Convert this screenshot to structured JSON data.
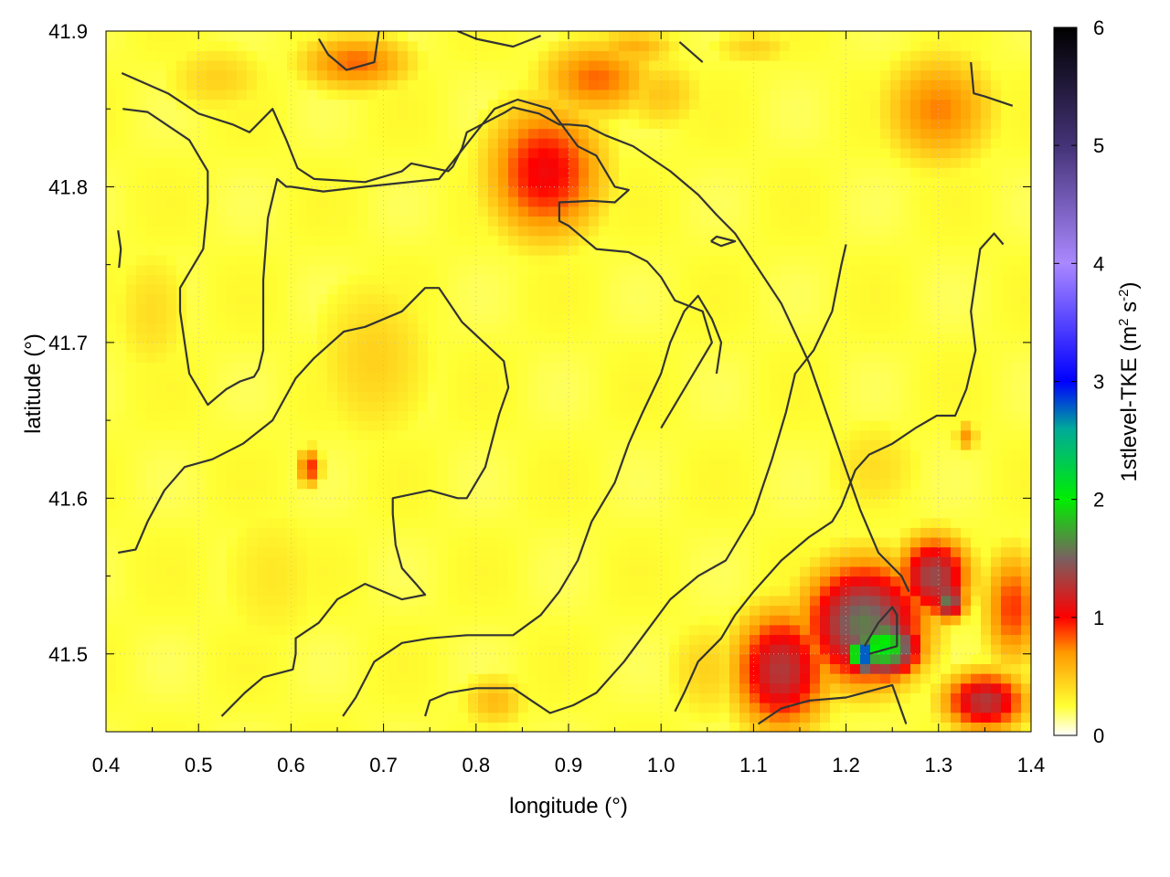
{
  "chart_data": {
    "type": "heatmap",
    "title": "",
    "xlabel": "longitude (°)",
    "ylabel": "latitude (°)",
    "xlim": [
      0.4,
      1.4
    ],
    "ylim": [
      41.45,
      41.9
    ],
    "xticks": [
      0.4,
      0.5,
      0.6,
      0.7,
      0.8,
      0.9,
      1.0,
      1.1,
      1.2,
      1.3,
      1.4
    ],
    "xtick_labels": [
      "0.4",
      "0.5",
      "0.6",
      "0.7",
      "0.8",
      "0.9",
      "1.0",
      "1.1",
      "1.2",
      "1.3",
      "1.4"
    ],
    "yticks": [
      41.5,
      41.6,
      41.7,
      41.8,
      41.9
    ],
    "ytick_labels": [
      "41.5",
      "41.6",
      "41.7",
      "41.8",
      "41.9"
    ],
    "grid": true,
    "colorbar": {
      "label_main": "1stlevel-TKE (m",
      "label_sup1": "2",
      "label_mid": " s",
      "label_sup2": "-2",
      "label_end": ")",
      "range": [
        0,
        6
      ],
      "ticks": [
        0,
        1,
        2,
        3,
        4,
        5,
        6
      ],
      "tick_labels": [
        "0",
        "1",
        "2",
        "3",
        "4",
        "5",
        "6"
      ],
      "colors": [
        {
          "v": 0.0,
          "c": "#ffffff"
        },
        {
          "v": 0.25,
          "c": "#ffff33"
        },
        {
          "v": 0.7,
          "c": "#ff9900"
        },
        {
          "v": 1.0,
          "c": "#ff0000"
        },
        {
          "v": 1.5,
          "c": "#7a6060"
        },
        {
          "v": 2.0,
          "c": "#00ee00"
        },
        {
          "v": 2.6,
          "c": "#00aa99"
        },
        {
          "v": 3.0,
          "c": "#0000ff"
        },
        {
          "v": 4.0,
          "c": "#aa88ff"
        },
        {
          "v": 5.0,
          "c": "#443377"
        },
        {
          "v": 6.0,
          "c": "#000000"
        }
      ]
    },
    "hotspots": [
      {
        "lon": 0.875,
        "lat": 41.81,
        "tke": 1.05,
        "sx": 0.05,
        "sy": 0.035
      },
      {
        "lon": 0.93,
        "lat": 41.87,
        "tke": 0.8,
        "sx": 0.05,
        "sy": 0.02
      },
      {
        "lon": 0.67,
        "lat": 41.88,
        "tke": 0.8,
        "sx": 0.05,
        "sy": 0.015
      },
      {
        "lon": 0.97,
        "lat": 41.89,
        "tke": 0.6,
        "sx": 0.04,
        "sy": 0.01
      },
      {
        "lon": 1.3,
        "lat": 41.85,
        "tke": 0.75,
        "sx": 0.05,
        "sy": 0.03
      },
      {
        "lon": 0.52,
        "lat": 41.87,
        "tke": 0.45,
        "sx": 0.05,
        "sy": 0.02
      },
      {
        "lon": 0.62,
        "lat": 41.62,
        "tke": 0.95,
        "sx": 0.01,
        "sy": 0.01
      },
      {
        "lon": 0.69,
        "lat": 41.69,
        "tke": 0.45,
        "sx": 0.06,
        "sy": 0.05
      },
      {
        "lon": 0.82,
        "lat": 41.47,
        "tke": 0.55,
        "sx": 0.03,
        "sy": 0.015
      },
      {
        "lon": 1.13,
        "lat": 41.49,
        "tke": 1.3,
        "sx": 0.04,
        "sy": 0.03
      },
      {
        "lon": 1.13,
        "lat": 41.49,
        "tke": 0.8,
        "sx": 0.025,
        "sy": 0.02
      },
      {
        "lon": 1.22,
        "lat": 41.52,
        "tke": 1.6,
        "sx": 0.05,
        "sy": 0.03
      },
      {
        "lon": 1.24,
        "lat": 41.505,
        "tke": 2.1,
        "sx": 0.03,
        "sy": 0.015
      },
      {
        "lon": 1.22,
        "lat": 41.5,
        "tke": 3.0,
        "sx": 0.012,
        "sy": 0.008
      },
      {
        "lon": 1.295,
        "lat": 41.55,
        "tke": 1.4,
        "sx": 0.03,
        "sy": 0.02
      },
      {
        "lon": 1.31,
        "lat": 41.535,
        "tke": 1.6,
        "sx": 0.015,
        "sy": 0.01
      },
      {
        "lon": 1.35,
        "lat": 41.47,
        "tke": 1.3,
        "sx": 0.035,
        "sy": 0.015
      },
      {
        "lon": 1.38,
        "lat": 41.53,
        "tke": 0.9,
        "sx": 0.025,
        "sy": 0.03
      },
      {
        "lon": 1.05,
        "lat": 41.49,
        "tke": 0.45,
        "sx": 0.04,
        "sy": 0.03
      },
      {
        "lon": 1.23,
        "lat": 41.62,
        "tke": 0.4,
        "sx": 0.05,
        "sy": 0.03
      },
      {
        "lon": 1.33,
        "lat": 41.64,
        "tke": 0.7,
        "sx": 0.01,
        "sy": 0.008
      },
      {
        "lon": 0.45,
        "lat": 41.72,
        "tke": 0.4,
        "sx": 0.04,
        "sy": 0.04
      },
      {
        "lon": 0.58,
        "lat": 41.55,
        "tke": 0.35,
        "sx": 0.06,
        "sy": 0.05
      },
      {
        "lon": 1.0,
        "lat": 41.86,
        "tke": 0.5,
        "sx": 0.04,
        "sy": 0.02
      },
      {
        "lon": 1.1,
        "lat": 41.89,
        "tke": 0.45,
        "sx": 0.04,
        "sy": 0.01
      }
    ],
    "contours": [
      [
        [
          0.417,
          41.873
        ],
        [
          0.467,
          41.86
        ],
        [
          0.5,
          41.847
        ],
        [
          0.537,
          41.84
        ],
        [
          0.555,
          41.835
        ],
        [
          0.58,
          41.85
        ],
        [
          0.595,
          41.83
        ],
        [
          0.607,
          41.812
        ],
        [
          0.625,
          41.805
        ],
        [
          0.68,
          41.803
        ],
        [
          0.72,
          41.81
        ],
        [
          0.73,
          41.815
        ],
        [
          0.77,
          41.81
        ],
        [
          0.775,
          41.813
        ],
        [
          0.785,
          41.825
        ],
        [
          0.79,
          41.835
        ],
        [
          0.832,
          41.848
        ],
        [
          0.84,
          41.851
        ],
        [
          0.868,
          41.847
        ],
        [
          0.89,
          41.84
        ],
        [
          0.9,
          41.84
        ],
        [
          0.92,
          41.839
        ],
        [
          0.94,
          41.833
        ],
        [
          0.97,
          41.826
        ],
        [
          1.01,
          41.81
        ],
        [
          1.04,
          41.795
        ],
        [
          1.06,
          41.782
        ],
        [
          1.08,
          41.77
        ],
        [
          1.13,
          41.725
        ],
        [
          1.16,
          41.687
        ],
        [
          1.195,
          41.627
        ],
        [
          1.215,
          41.593
        ],
        [
          1.235,
          41.565
        ],
        [
          1.26,
          41.55
        ],
        [
          1.268,
          41.54
        ]
      ],
      [
        [
          0.418,
          41.85
        ],
        [
          0.445,
          41.848
        ],
        [
          0.49,
          41.83
        ],
        [
          0.51,
          41.81
        ],
        [
          0.51,
          41.79
        ],
        [
          0.505,
          41.76
        ],
        [
          0.48,
          41.735
        ],
        [
          0.48,
          41.72
        ],
        [
          0.485,
          41.7
        ],
        [
          0.49,
          41.68
        ],
        [
          0.51,
          41.66
        ],
        [
          0.52,
          41.665
        ],
        [
          0.53,
          41.67
        ],
        [
          0.545,
          41.675
        ],
        [
          0.56,
          41.678
        ],
        [
          0.565,
          41.683
        ],
        [
          0.57,
          41.695
        ],
        [
          0.57,
          41.74
        ],
        [
          0.575,
          41.78
        ],
        [
          0.585,
          41.805
        ],
        [
          0.595,
          41.8
        ],
        [
          0.6,
          41.8
        ],
        [
          0.6,
          41.8
        ],
        [
          0.635,
          41.797
        ],
        [
          0.68,
          41.8
        ],
        [
          0.76,
          41.805
        ],
        [
          0.78,
          41.82
        ],
        [
          0.82,
          41.85
        ],
        [
          0.845,
          41.856
        ],
        [
          0.88,
          41.85
        ],
        [
          0.91,
          41.826
        ],
        [
          0.93,
          41.82
        ],
        [
          0.95,
          41.8
        ],
        [
          0.965,
          41.798
        ],
        [
          0.95,
          41.79
        ],
        [
          0.925,
          41.791
        ],
        [
          0.89,
          41.79
        ],
        [
          0.89,
          41.778
        ],
        [
          0.9,
          41.775
        ],
        [
          0.93,
          41.76
        ],
        [
          0.965,
          41.758
        ],
        [
          0.985,
          41.752
        ],
        [
          1.0,
          41.742
        ],
        [
          1.015,
          41.727
        ],
        [
          1.045,
          41.72
        ],
        [
          1.055,
          41.7
        ],
        [
          1.0,
          41.645
        ]
      ],
      [
        [
          0.413,
          41.565
        ],
        [
          0.432,
          41.567
        ],
        [
          0.445,
          41.585
        ],
        [
          0.463,
          41.605
        ],
        [
          0.485,
          41.62
        ],
        [
          0.515,
          41.625
        ],
        [
          0.548,
          41.635
        ],
        [
          0.58,
          41.65
        ],
        [
          0.605,
          41.677
        ],
        [
          0.625,
          41.69
        ],
        [
          0.657,
          41.707
        ],
        [
          0.68,
          41.71
        ],
        [
          0.72,
          41.72
        ],
        [
          0.745,
          41.735
        ],
        [
          0.76,
          41.735
        ],
        [
          0.785,
          41.713
        ],
        [
          0.83,
          41.688
        ],
        [
          0.835,
          41.671
        ],
        [
          0.825,
          41.654
        ],
        [
          0.81,
          41.62
        ],
        [
          0.79,
          41.6
        ],
        [
          0.78,
          41.6
        ],
        [
          0.75,
          41.605
        ],
        [
          0.71,
          41.6
        ],
        [
          0.71,
          41.59
        ],
        [
          0.713,
          41.57
        ],
        [
          0.72,
          41.555
        ],
        [
          0.735,
          41.545
        ],
        [
          0.745,
          41.538
        ],
        [
          0.72,
          41.535
        ],
        [
          0.68,
          41.545
        ],
        [
          0.65,
          41.535
        ],
        [
          0.63,
          41.52
        ],
        [
          0.605,
          41.51
        ],
        [
          0.605,
          41.5
        ],
        [
          0.602,
          41.49
        ],
        [
          0.57,
          41.485
        ],
        [
          0.55,
          41.475
        ],
        [
          0.525,
          41.46
        ]
      ],
      [
        [
          1.015,
          41.463
        ],
        [
          1.025,
          41.475
        ],
        [
          1.04,
          41.495
        ],
        [
          1.065,
          41.51
        ],
        [
          1.08,
          41.525
        ],
        [
          1.1,
          41.54
        ],
        [
          1.13,
          41.56
        ],
        [
          1.16,
          41.575
        ],
        [
          1.185,
          41.585
        ],
        [
          1.195,
          41.595
        ],
        [
          1.21,
          41.618
        ],
        [
          1.225,
          41.628
        ],
        [
          1.25,
          41.635
        ],
        [
          1.275,
          41.645
        ],
        [
          1.298,
          41.653
        ],
        [
          1.318,
          41.653
        ],
        [
          1.33,
          41.67
        ],
        [
          1.34,
          41.695
        ],
        [
          1.335,
          41.72
        ],
        [
          1.345,
          41.76
        ],
        [
          1.36,
          41.77
        ],
        [
          1.37,
          41.763
        ]
      ],
      [
        [
          0.656,
          41.46
        ],
        [
          0.67,
          41.472
        ],
        [
          0.69,
          41.495
        ],
        [
          0.72,
          41.507
        ],
        [
          0.75,
          41.51
        ],
        [
          0.79,
          41.512
        ],
        [
          0.84,
          41.512
        ],
        [
          0.87,
          41.525
        ],
        [
          0.89,
          41.54
        ],
        [
          0.91,
          41.56
        ],
        [
          0.925,
          41.585
        ],
        [
          0.95,
          41.61
        ],
        [
          0.965,
          41.635
        ],
        [
          0.98,
          41.655
        ],
        [
          1.0,
          41.68
        ],
        [
          1.01,
          41.7
        ],
        [
          1.025,
          41.72
        ],
        [
          1.04,
          41.73
        ],
        [
          1.055,
          41.715
        ],
        [
          1.065,
          41.7
        ],
        [
          1.06,
          41.68
        ]
      ],
      [
        [
          0.745,
          41.46
        ],
        [
          0.75,
          41.47
        ],
        [
          0.77,
          41.475
        ],
        [
          0.8,
          41.478
        ],
        [
          0.84,
          41.478
        ],
        [
          0.86,
          41.47
        ],
        [
          0.88,
          41.462
        ],
        [
          0.905,
          41.467
        ],
        [
          0.93,
          41.475
        ],
        [
          0.96,
          41.495
        ],
        [
          0.985,
          41.515
        ],
        [
          1.01,
          41.535
        ],
        [
          1.04,
          41.55
        ],
        [
          1.07,
          41.56
        ],
        [
          1.1,
          41.59
        ],
        [
          1.12,
          41.625
        ],
        [
          1.135,
          41.655
        ],
        [
          1.145,
          41.68
        ],
        [
          1.165,
          41.695
        ],
        [
          1.185,
          41.72
        ],
        [
          1.195,
          41.75
        ],
        [
          1.2,
          41.763
        ]
      ],
      [
        [
          1.105,
          41.455
        ],
        [
          1.13,
          41.465
        ],
        [
          1.16,
          41.47
        ],
        [
          1.2,
          41.472
        ],
        [
          1.25,
          41.48
        ],
        [
          1.265,
          41.455
        ]
      ],
      [
        [
          0.413,
          41.772
        ],
        [
          0.416,
          41.76
        ],
        [
          0.414,
          41.748
        ]
      ],
      [
        [
          1.054,
          41.765
        ],
        [
          1.06,
          41.768
        ],
        [
          1.08,
          41.765
        ],
        [
          1.065,
          41.762
        ],
        [
          1.054,
          41.765
        ]
      ],
      [
        [
          1.335,
          41.88
        ],
        [
          1.338,
          41.86
        ],
        [
          1.35,
          41.858
        ],
        [
          1.38,
          41.852
        ]
      ],
      [
        [
          1.22,
          41.505
        ],
        [
          1.235,
          41.52
        ],
        [
          1.25,
          41.53
        ],
        [
          1.255,
          41.525
        ],
        [
          1.255,
          41.505
        ],
        [
          1.225,
          41.5
        ]
      ],
      [
        [
          0.63,
          41.895
        ],
        [
          0.64,
          41.885
        ],
        [
          0.66,
          41.875
        ],
        [
          0.69,
          41.88
        ],
        [
          0.695,
          41.9
        ]
      ],
      [
        [
          0.78,
          41.9
        ],
        [
          0.8,
          41.895
        ],
        [
          0.84,
          41.89
        ],
        [
          0.87,
          41.897
        ]
      ],
      [
        [
          1.02,
          41.893
        ],
        [
          1.045,
          41.88
        ]
      ]
    ]
  }
}
